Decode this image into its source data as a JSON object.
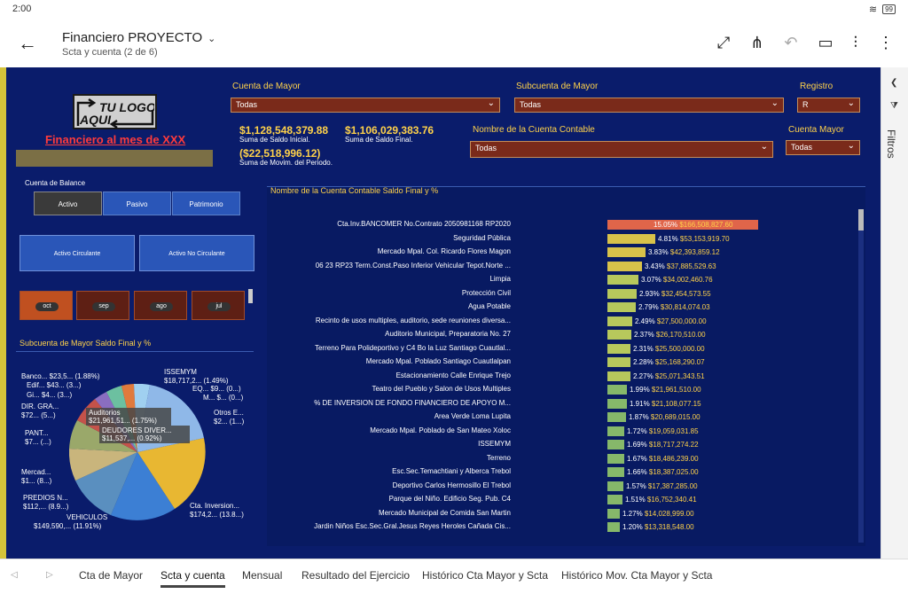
{
  "status": {
    "time": "2:00",
    "battery": "99"
  },
  "app": {
    "title": "Financiero PROYECTO",
    "subtitle": "Scta y cuenta (2 de 6)"
  },
  "icons": [
    "back-arrow-icon",
    "chevron-down-icon",
    "expand-icon",
    "share-icon",
    "undo-icon",
    "comment-icon",
    "chart-add-icon",
    "more-icon"
  ],
  "report": {
    "logo": "TU LOGO AQUI",
    "title": "Financiero al mes de XXX",
    "filters": {
      "cuenta_mayor": {
        "label": "Cuenta de Mayor",
        "value": "Todas"
      },
      "subcuenta": {
        "label": "Subcuenta de Mayor",
        "value": "Todas"
      },
      "registro": {
        "label": "Registro",
        "value": "R"
      },
      "nombre_cuenta": {
        "label": "Nombre de la Cuenta Contable",
        "value": "Todas"
      },
      "cuenta_mayor2": {
        "label": "Cuenta Mayor",
        "value": "Todas"
      }
    },
    "kpis": [
      {
        "value": "$1,128,548,379.88",
        "label": "Suma de Saldo Inicial."
      },
      {
        "value": "$1,106,029,383.76",
        "label": "Suma de Saldo Final."
      },
      {
        "value": "($22,518,996.12)",
        "label": "Suma de Movim. del Periodo."
      }
    ],
    "balance": {
      "title": "Cuenta de Balance",
      "buttons": [
        "Activo",
        "Pasivo",
        "Patrimonio"
      ]
    },
    "cards": [
      "Activo Circulante",
      "Activo No Circulante"
    ],
    "months": [
      "oct",
      "sep",
      "ago",
      "jul"
    ],
    "pie": {
      "title": "Subcuenta de Mayor Saldo Final y %",
      "labels": [
        "Banco... $23,5... (1.88%)",
        "Edif... $43... (3...)",
        "Gi... $4... (3...)",
        "DIR. GRA...",
        "$72... (5...)",
        "PANT...",
        "$7... (...)",
        "Mercad...",
        "$1... (8...)",
        "PREDIOS N...",
        "$112,... (8.9...)",
        "VEHICULOS",
        "$149,590,... (11.91%)",
        "ISSEMYM",
        "$18,717,2... (1.49%)",
        "EQ... $9... (0...)",
        "M... $... (0...)",
        "Otros E...",
        "$2... (1...)",
        "Cta. Inversion...",
        "$174,2... (13.8...)"
      ],
      "tooltips": [
        "Auditorios",
        "$21,961,51... (1.75%)",
        "DEUDORES DIVER...",
        "$11,537,... (0.92%)"
      ]
    },
    "bars_title": "Nombre de la Cuenta Contable Saldo Final y %"
  },
  "chart_data": {
    "type": "bar",
    "title": "Nombre de la Cuenta Contable Saldo Final y %",
    "orientation": "horizontal",
    "categories": [
      "Cta.Inv.BANCOMER No.Contrato 2050981168 RP2020",
      "Seguridad Pública",
      "Mercado Mpal. Col. Ricardo Flores Magon",
      "06 23 RP23 Term.Const.Paso Inferior Vehicular Tepot.Norte ...",
      "Limpia",
      "Protección Civil",
      "Agua Potable",
      "Recinto de usos multiples, auditorio, sede reuniones diversa...",
      "Auditorio Municipal, Preparatoria No. 27",
      "Terreno Para Polideportivo y C4 Bo la Luz Santiago Cuautlal...",
      "Mercado Mpal. Poblado Santiago Cuautlalpan",
      "Estacionamiento Calle Enrique Trejo",
      "Teatro del Pueblo y Salon de Usos Multiples",
      "% DE INVERSION DE FONDO FINANCIERO DE APOYO M...",
      "Area Verde Loma Lupita",
      "Mercado Mpal. Poblado de San Mateo Xoloc",
      "ISSEMYM",
      "Terreno",
      "Esc.Sec.Temachtiani y Alberca Trebol",
      "Deportivo Carlos Hermosillo El Trebol",
      "Parque del Niño. Edificio Seg. Pub. C4",
      "Mercado Municipal de Comida San Martin",
      "Jardin Niños Esc.Sec.Gral.Jesus Reyes Heroles Cañada Cis..."
    ],
    "percent": [
      15.05,
      4.81,
      3.83,
      3.43,
      3.07,
      2.93,
      2.79,
      2.49,
      2.37,
      2.31,
      2.28,
      2.27,
      1.99,
      1.91,
      1.87,
      1.72,
      1.69,
      1.67,
      1.66,
      1.57,
      1.51,
      1.27,
      1.2
    ],
    "value_labels": [
      "$166,508,827.60",
      "$53,153,919.70",
      "$42,393,859.12",
      "$37,885,529.63",
      "$34,002,460.76",
      "$32,454,573.55",
      "$30,814,074.03",
      "$27,500,000.00",
      "$26,170,510.00",
      "$25,500,000.00",
      "$25,168,290.07",
      "$25,071,343.51",
      "$21,961,510.00",
      "$21,108,077.15",
      "$20,689,015.00",
      "$19,059,031.85",
      "$18,717,274.22",
      "$18,486,239.00",
      "$18,387,025.00",
      "$17,387,285.00",
      "$16,752,340.41",
      "$14,028,999.00",
      "$13,318,548.00"
    ],
    "colors": {
      "top": "#e0654a",
      "high": "#d8c24a",
      "mid": "#b7c85c",
      "low": "#86b86a"
    }
  },
  "tabs": [
    "Cta de Mayor",
    "Scta y cuenta",
    "Mensual",
    "Resultado del Ejercicio",
    "Histórico Cta Mayor y Scta",
    "Histórico Mov. Cta Mayor y Scta"
  ],
  "filter_pane": {
    "label": "Filtros"
  }
}
